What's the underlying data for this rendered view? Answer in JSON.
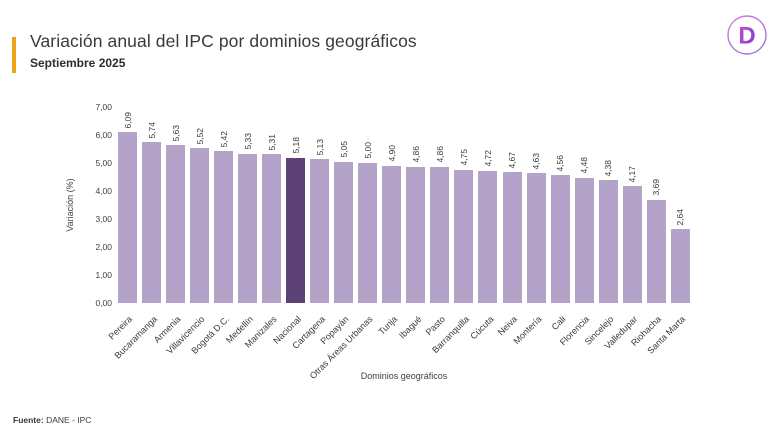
{
  "header": {
    "title": "Variación anual del IPC por dominios geográficos",
    "subtitle": "Septiembre 2025",
    "accent_color": "#EEA31B"
  },
  "logo": {
    "letter": "D",
    "gradient_start": "#C84BC8",
    "gradient_end": "#7B3FD6"
  },
  "chart_data": {
    "type": "bar",
    "title": "Variación anual del IPC por dominios geográficos - Septiembre 2025",
    "xlabel": "Dominios geográficos",
    "ylabel": "Variación (%)",
    "ylim": [
      0,
      7
    ],
    "grid": false,
    "legend": false,
    "y_ticks": [
      "0,00",
      "1,00",
      "2,00",
      "3,00",
      "4,00",
      "5,00",
      "6,00",
      "7,00"
    ],
    "bar_color": "#B4A3C9",
    "highlight_color": "#5D4276",
    "highlight_category": "Nacional",
    "categories": [
      "Pereira",
      "Bucaramanga",
      "Armenia",
      "Villavicencio",
      "Bogotá D.C.",
      "Medellín",
      "Manizales",
      "Nacional",
      "Cartagena",
      "Popayán",
      "Otras Áreas Urbanas",
      "Tunja",
      "Ibagué",
      "Pasto",
      "Barranquilla",
      "Cúcuta",
      "Neiva",
      "Montería",
      "Cali",
      "Florencia",
      "Sincelejo",
      "Valledupar",
      "Riohacha",
      "Santa Marta"
    ],
    "values": [
      6.09,
      5.74,
      5.63,
      5.52,
      5.42,
      5.33,
      5.31,
      5.18,
      5.13,
      5.05,
      5.0,
      4.9,
      4.86,
      4.86,
      4.75,
      4.72,
      4.67,
      4.63,
      4.56,
      4.48,
      4.38,
      4.17,
      3.69,
      2.64
    ],
    "value_labels": [
      "6,09",
      "5,74",
      "5,63",
      "5,52",
      "5,42",
      "5,33",
      "5,31",
      "5,18",
      "5,13",
      "5,05",
      "5,00",
      "4,90",
      "4,86",
      "4,86",
      "4,75",
      "4,72",
      "4,67",
      "4,63",
      "4,56",
      "4,48",
      "4,38",
      "4,17",
      "3,69",
      "2,64"
    ]
  },
  "footer": {
    "source_label": "Fuente:",
    "source_value": "DANE - IPC"
  }
}
